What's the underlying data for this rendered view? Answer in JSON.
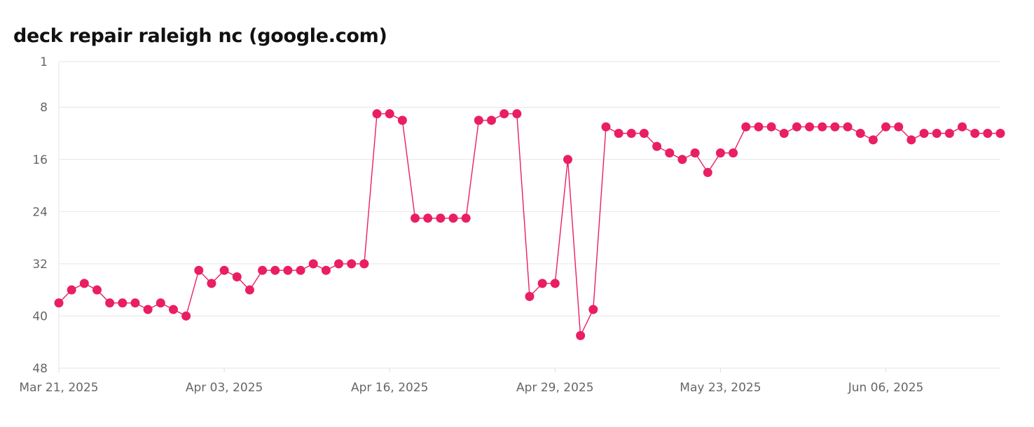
{
  "chart_data": {
    "type": "line",
    "title": "deck repair raleigh nc (google.com)",
    "xlabel": "",
    "ylabel": "",
    "y_axis_inverted": true,
    "ylim": [
      1,
      48
    ],
    "y_ticks": [
      "1",
      "8",
      "16",
      "24",
      "32",
      "40",
      "48"
    ],
    "x_ticks": [
      "Mar 21, 2025",
      "Apr 03, 2025",
      "Apr 16, 2025",
      "Apr 29, 2025",
      "May 23, 2025",
      "Jun 06, 2025"
    ],
    "grid": true,
    "legend": "none",
    "series": [
      {
        "color": "#e91e63",
        "values": [
          38,
          36,
          35,
          36,
          38,
          38,
          38,
          39,
          38,
          39,
          40,
          33,
          35,
          33,
          34,
          36,
          33,
          33,
          33,
          33,
          32,
          33,
          32,
          32,
          32,
          9,
          9,
          10,
          25,
          25,
          25,
          25,
          25,
          10,
          10,
          9,
          9,
          37,
          35,
          35,
          16,
          43,
          39,
          11,
          12,
          12,
          12,
          14,
          15,
          16,
          15,
          18,
          15,
          15,
          11,
          11,
          11,
          12,
          11,
          11,
          11,
          11,
          11,
          12,
          13,
          11,
          11,
          13,
          12,
          12,
          12,
          11,
          12,
          12,
          12
        ]
      }
    ]
  }
}
